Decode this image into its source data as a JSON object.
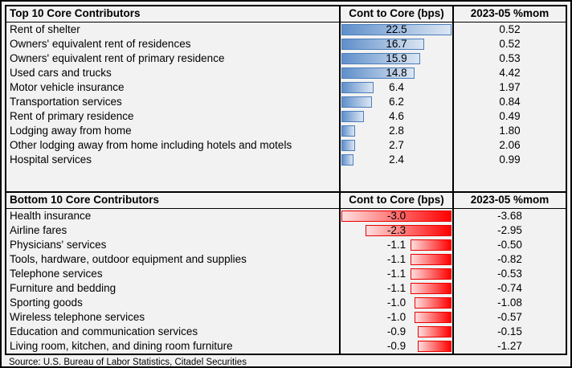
{
  "colors": {
    "background": "#F2F2F2",
    "table_border": "#000000",
    "text": "#000000",
    "positive_bar_gradient_start": "#5F8FCA",
    "positive_bar_gradient_end": "#DCE6F3",
    "positive_bar_border": "#4A7EBB",
    "negative_bar_gradient_start": "#FFDEDE",
    "negative_bar_gradient_end": "#FF0000",
    "negative_bar_border": "#E80000"
  },
  "source": "Source: U.S. Bureau of Labor Statistics, Citadel Securities",
  "chart_data": [
    {
      "type": "table",
      "title": "Top 10 Core Contributors",
      "columns": [
        "Top 10 Core Contributors",
        "Cont to Core (bps)",
        "2023-05 %mom"
      ],
      "bar_column": "Cont to Core (bps)",
      "bar_axis_max": 22.5,
      "bar_anchor": "left",
      "rows": [
        {
          "label": "Rent of shelter",
          "bps": "22.5",
          "mom": "0.52"
        },
        {
          "label": "Owners' equivalent rent of residences",
          "bps": "16.7",
          "mom": "0.52"
        },
        {
          "label": "Owners' equivalent rent of primary residence",
          "bps": "15.9",
          "mom": "0.53"
        },
        {
          "label": "Used cars and trucks",
          "bps": "14.8",
          "mom": "4.42"
        },
        {
          "label": "Motor vehicle insurance",
          "bps": "6.4",
          "mom": "1.97"
        },
        {
          "label": "Transportation services",
          "bps": "6.2",
          "mom": "0.84"
        },
        {
          "label": "Rent of primary residence",
          "bps": "4.6",
          "mom": "0.49"
        },
        {
          "label": "Lodging away from home",
          "bps": "2.8",
          "mom": "1.80"
        },
        {
          "label": "Other lodging away from home including hotels and motels",
          "bps": "2.7",
          "mom": "2.06"
        },
        {
          "label": "Hospital services",
          "bps": "2.4",
          "mom": "0.99"
        }
      ]
    },
    {
      "type": "table",
      "title": "Bottom 10 Core Contributors",
      "columns": [
        "Bottom 10 Core Contributors",
        "Cont to Core (bps)",
        "2023-05 %mom"
      ],
      "bar_column": "Cont to Core (bps)",
      "bar_axis_max": 3.0,
      "bar_anchor": "right",
      "rows": [
        {
          "label": "Health insurance",
          "bps": "-3.0",
          "mom": "-3.68"
        },
        {
          "label": "Airline fares",
          "bps": "-2.3",
          "mom": "-2.95"
        },
        {
          "label": "Physicians' services",
          "bps": "-1.1",
          "mom": "-0.50"
        },
        {
          "label": "Tools, hardware, outdoor equipment and supplies",
          "bps": "-1.1",
          "mom": "-0.82"
        },
        {
          "label": "Telephone services",
          "bps": "-1.1",
          "mom": "-0.53"
        },
        {
          "label": "Furniture and bedding",
          "bps": "-1.1",
          "mom": "-0.74"
        },
        {
          "label": "Sporting goods",
          "bps": "-1.0",
          "mom": "-1.08"
        },
        {
          "label": "Wireless telephone services",
          "bps": "-1.0",
          "mom": "-0.57"
        },
        {
          "label": "Education and communication services",
          "bps": "-0.9",
          "mom": "-0.15"
        },
        {
          "label": "Living room, kitchen, and dining room furniture",
          "bps": "-0.9",
          "mom": "-1.27"
        }
      ]
    }
  ]
}
